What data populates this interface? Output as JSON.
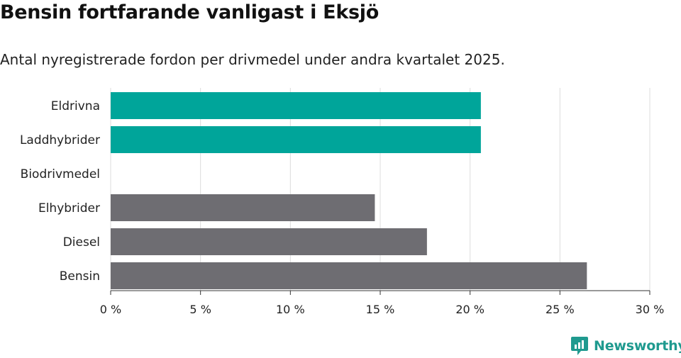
{
  "header": {
    "title": "Bensin fortfarande vanligast i Eksjö",
    "subtitle": "Antal nyregistrerade fordon per drivmedel under andra kvartalet 2025."
  },
  "brand": {
    "name": "Newsworthy",
    "color": "#1f9a8f",
    "icon": "newsworthy-chart-bubble-icon"
  },
  "chart_data": {
    "type": "bar",
    "orientation": "horizontal",
    "categories": [
      "Eldrivna",
      "Laddhybrider",
      "Biodrivmedel",
      "Elhybrider",
      "Diesel",
      "Bensin"
    ],
    "values": [
      20.6,
      20.6,
      0,
      14.7,
      17.6,
      26.5
    ],
    "colors": [
      "#00a59a",
      "#00a59a",
      "#00a59a",
      "#6e6d72",
      "#6e6d72",
      "#6e6d72"
    ],
    "xlim": [
      0,
      30
    ],
    "ticks": [
      0,
      5,
      10,
      15,
      20,
      25,
      30
    ],
    "tick_labels": [
      "0 %",
      "5 %",
      "10 %",
      "15 %",
      "20 %",
      "25 %",
      "30 %"
    ],
    "grid": true,
    "xlabel": "",
    "ylabel": ""
  }
}
